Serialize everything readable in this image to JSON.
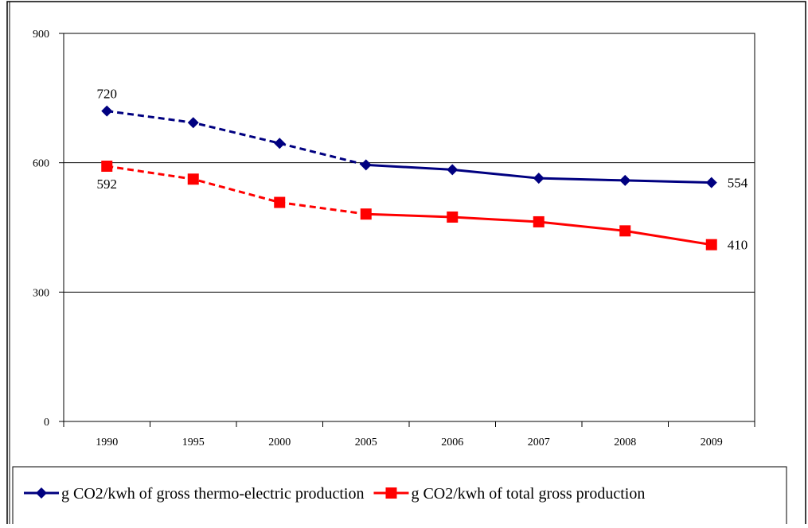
{
  "chart_data": {
    "type": "line",
    "categories": [
      "1990",
      "1995",
      "2000",
      "2005",
      "2006",
      "2007",
      "2008",
      "2009"
    ],
    "series": [
      {
        "name": "g CO2/kwh of gross thermo-electric production",
        "color": "#000080",
        "marker": "diamond",
        "values": [
          720,
          693,
          645,
          595,
          584,
          564,
          559,
          554
        ],
        "label_indices": [
          0,
          7
        ]
      },
      {
        "name": "g CO2/kwh of total gross production",
        "color": "#ff0000",
        "marker": "square",
        "values": [
          592,
          562,
          508,
          481,
          474,
          463,
          442,
          410
        ],
        "label_indices": [
          0,
          7
        ]
      }
    ],
    "dashed_until_category": "2005",
    "ylim": [
      0,
      900
    ],
    "yticks": [
      0,
      300,
      600,
      900
    ],
    "grid": true,
    "legend": "bottom"
  }
}
